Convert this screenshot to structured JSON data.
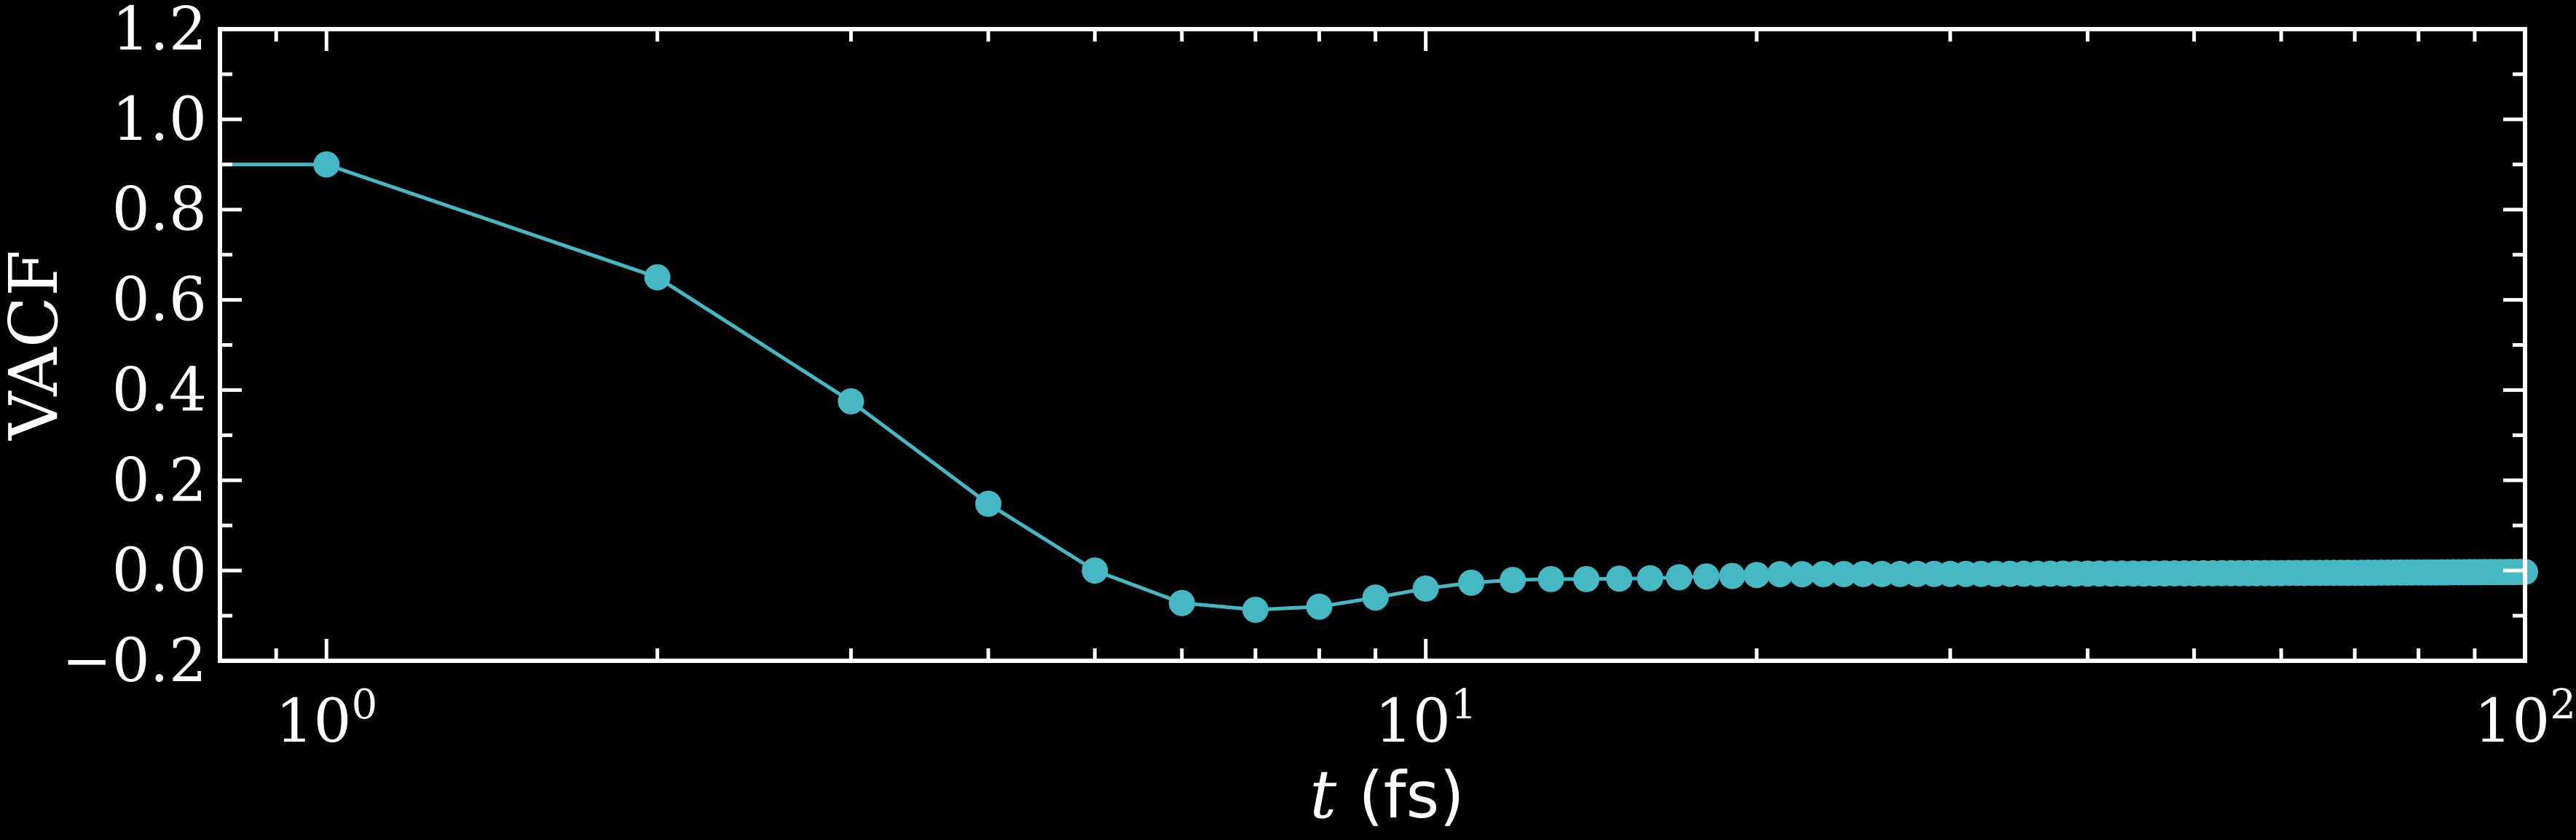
{
  "chart_data": {
    "type": "line",
    "xscale": "log",
    "xlim": [
      0.8,
      100
    ],
    "ylim": [
      -0.2,
      1.2
    ],
    "xlabel": {
      "var": "t",
      "unit": "(fs)"
    },
    "ylabel": "VACF",
    "x_ticks": [
      {
        "base": "10",
        "exp": "0"
      },
      {
        "base": "10",
        "exp": "1"
      },
      {
        "base": "10",
        "exp": "2"
      }
    ],
    "y_ticks": [
      "−0.2",
      "0.0",
      "0.2",
      "0.4",
      "0.6",
      "0.8",
      "1.0",
      "1.2"
    ],
    "y_tick_values": [
      -0.2,
      0.0,
      0.2,
      0.4,
      0.6,
      0.8,
      1.0,
      1.2
    ],
    "grid": false,
    "series": [
      {
        "color": "#45b8c4",
        "marker": "circle",
        "x": [
          0,
          1,
          2,
          3,
          4,
          5,
          6,
          7,
          8,
          9,
          10,
          11,
          12,
          13,
          14,
          15,
          16,
          17,
          18,
          19,
          20
        ],
        "y": [
          0.9,
          0.9,
          0.65,
          0.375,
          0.148,
          0.0,
          -0.072,
          -0.087,
          -0.08,
          -0.06,
          -0.04,
          -0.027,
          -0.021,
          -0.019,
          -0.019,
          -0.018,
          -0.017,
          -0.015,
          -0.013,
          -0.012,
          -0.01
        ],
        "tail": {
          "x_start": 21,
          "x_end": 100,
          "y_start": -0.008,
          "y_end": -0.003
        }
      }
    ]
  }
}
